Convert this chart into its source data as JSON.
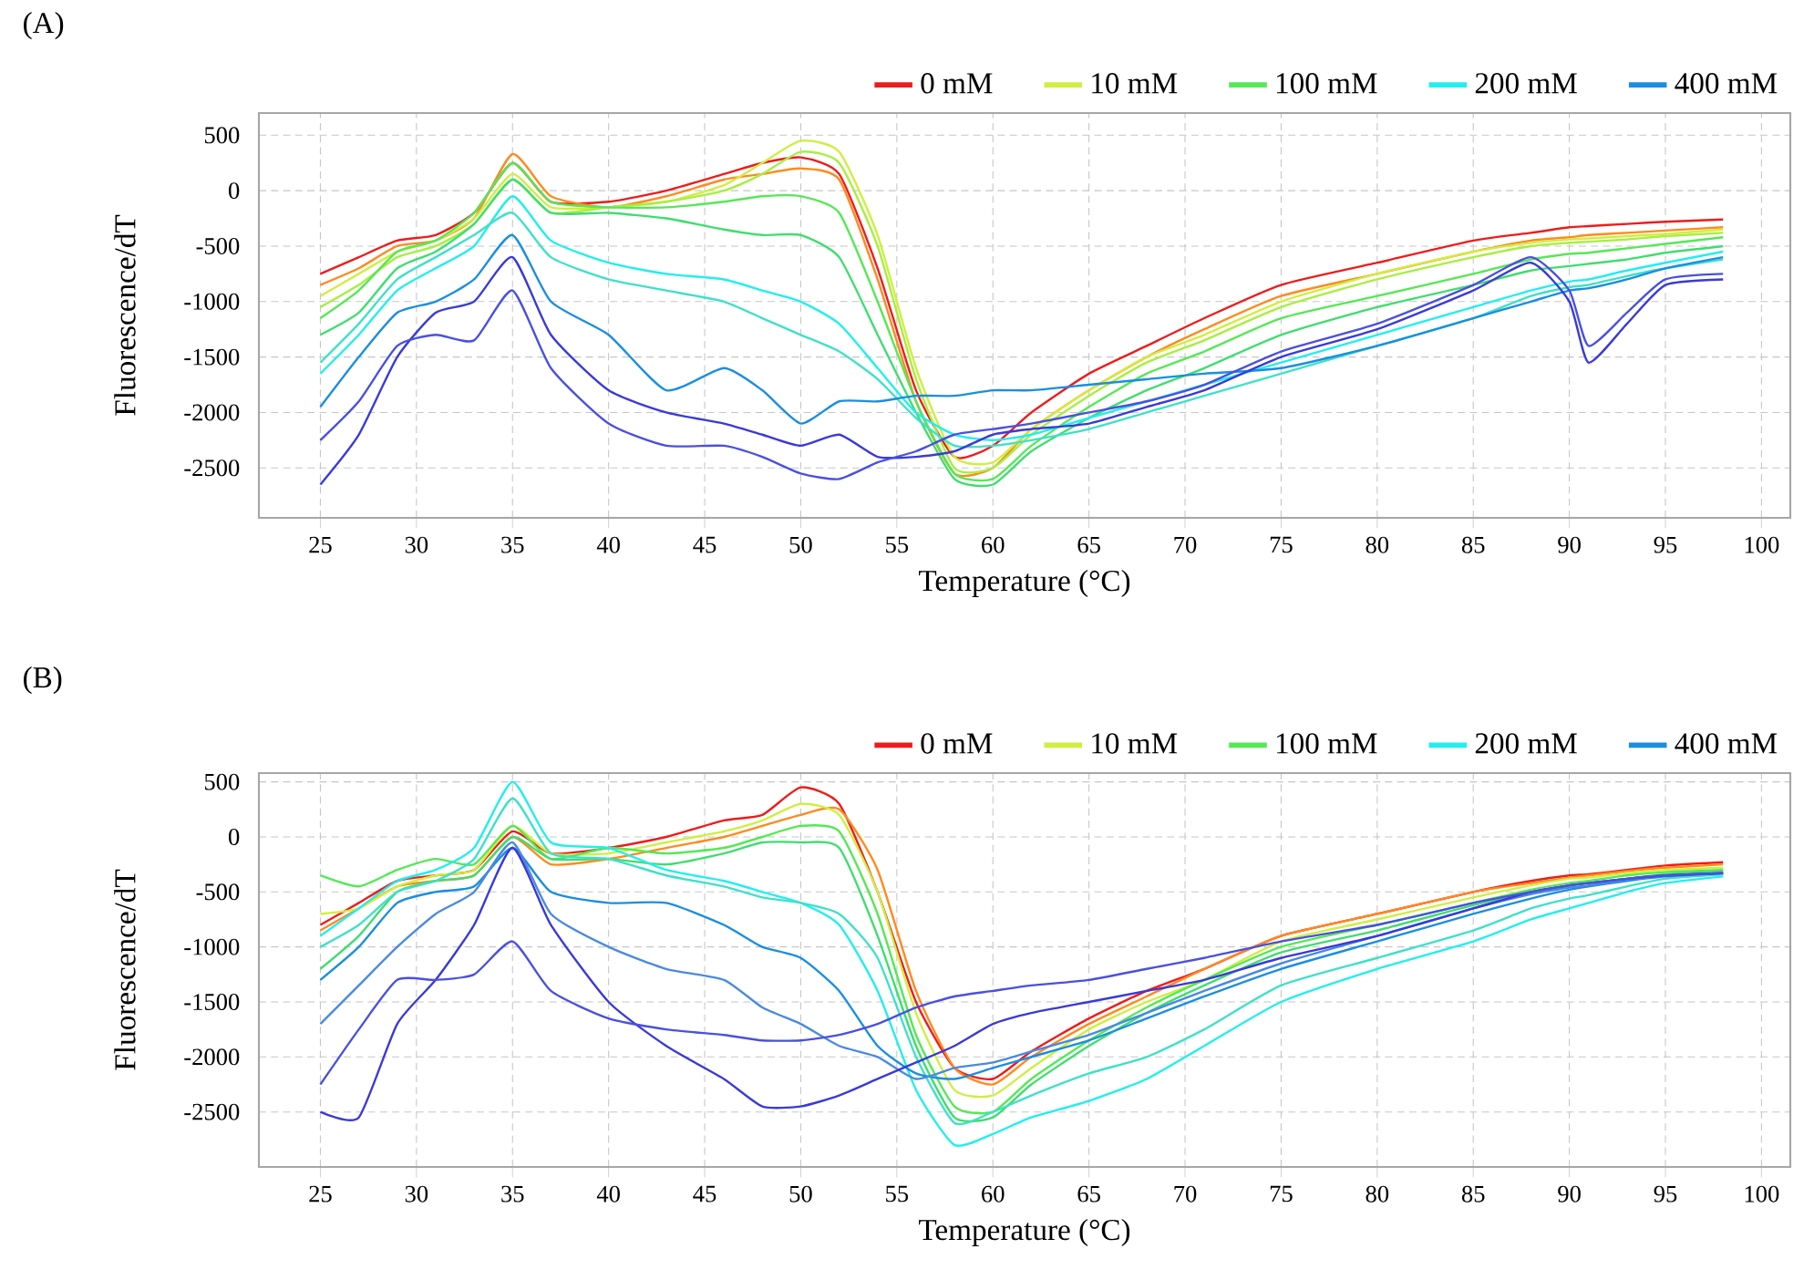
{
  "chart_data": [
    {
      "type": "line",
      "title": "(A)",
      "xlabel": "Temperature (°C)",
      "ylabel": "Fluorescence/dT",
      "x": [
        25,
        27,
        29,
        31,
        33,
        35,
        37,
        40,
        43,
        46,
        48,
        50,
        52,
        54,
        56,
        58,
        60,
        62,
        65,
        68,
        71,
        75,
        80,
        85,
        88,
        90,
        91,
        93,
        95,
        98
      ],
      "xlim": [
        21.8,
        101.5
      ],
      "ylim": [
        -2950,
        700
      ],
      "xticks": [
        25,
        30,
        35,
        40,
        45,
        50,
        55,
        60,
        65,
        70,
        75,
        80,
        85,
        90,
        95,
        100
      ],
      "yticks": [
        -2500,
        -2000,
        -1500,
        -1000,
        -500,
        0,
        500
      ],
      "grid": true,
      "legend": "top",
      "series": [
        {
          "name": "0 mM",
          "color": "#ee1c1c",
          "values": [
            -750,
            -600,
            -450,
            -400,
            -200,
            250,
            -100,
            -100,
            0,
            150,
            250,
            300,
            150,
            -700,
            -1800,
            -2400,
            -2300,
            -2000,
            -1650,
            -1400,
            -1150,
            -850,
            -650,
            -450,
            -380,
            -330,
            -320,
            -300,
            -280,
            -260
          ]
        },
        {
          "color": "#ff8a1e",
          "values": [
            -850,
            -700,
            -500,
            -450,
            -250,
            330,
            -50,
            -150,
            -50,
            100,
            150,
            200,
            100,
            -800,
            -1900,
            -2550,
            -2500,
            -2150,
            -1800,
            -1500,
            -1250,
            -950,
            -750,
            -550,
            -450,
            -420,
            -400,
            -380,
            -360,
            -330
          ]
        },
        {
          "name": "10 mM",
          "color": "#d0ee40",
          "values": [
            -950,
            -750,
            -550,
            -450,
            -250,
            150,
            -150,
            -150,
            -100,
            50,
            250,
            450,
            350,
            -400,
            -1600,
            -2400,
            -2450,
            -2150,
            -1800,
            -1500,
            -1300,
            -1000,
            -750,
            -550,
            -470,
            -440,
            -430,
            -410,
            -390,
            -350
          ]
        },
        {
          "color": "#a8ee40",
          "values": [
            -1050,
            -850,
            -600,
            -500,
            -300,
            100,
            -200,
            -150,
            -100,
            0,
            150,
            350,
            250,
            -500,
            -1700,
            -2500,
            -2500,
            -2200,
            -1850,
            -1550,
            -1350,
            -1050,
            -800,
            -600,
            -500,
            -470,
            -460,
            -440,
            -410,
            -380
          ]
        },
        {
          "name": "100 mM",
          "color": "#55e855",
          "values": [
            -1150,
            -900,
            -550,
            -450,
            -200,
            250,
            -100,
            -150,
            -150,
            -100,
            -50,
            -50,
            -200,
            -1000,
            -1900,
            -2550,
            -2600,
            -2300,
            -1950,
            -1650,
            -1450,
            -1150,
            -950,
            -750,
            -620,
            -570,
            -560,
            -520,
            -480,
            -420
          ]
        },
        {
          "color": "#40dd70",
          "values": [
            -1300,
            -1100,
            -700,
            -550,
            -300,
            100,
            -200,
            -200,
            -250,
            -350,
            -400,
            -400,
            -600,
            -1300,
            -2000,
            -2600,
            -2650,
            -2350,
            -2050,
            -1800,
            -1600,
            -1300,
            -1050,
            -850,
            -720,
            -680,
            -660,
            -620,
            -560,
            -500
          ]
        },
        {
          "name": "200 mM",
          "color": "#22eeee",
          "values": [
            -1650,
            -1300,
            -900,
            -700,
            -500,
            -50,
            -450,
            -650,
            -750,
            -800,
            -900,
            -1000,
            -1200,
            -1600,
            -2000,
            -2200,
            -2250,
            -2200,
            -2050,
            -1900,
            -1750,
            -1550,
            -1300,
            -1050,
            -900,
            -820,
            -800,
            -720,
            -650,
            -550
          ]
        },
        {
          "color": "#40e0c8",
          "values": [
            -1550,
            -1200,
            -800,
            -600,
            -400,
            -200,
            -600,
            -800,
            -900,
            -1000,
            -1150,
            -1300,
            -1450,
            -1700,
            -2050,
            -2300,
            -2300,
            -2250,
            -2150,
            -2000,
            -1850,
            -1650,
            -1400,
            -1150,
            -950,
            -870,
            -850,
            -770,
            -700,
            -620
          ]
        },
        {
          "name": "400 mM",
          "color": "#1a8ee0",
          "values": [
            -1950,
            -1500,
            -1100,
            -1000,
            -800,
            -400,
            -1000,
            -1300,
            -1800,
            -1600,
            -1800,
            -2100,
            -1900,
            -1900,
            -1850,
            -1850,
            -1800,
            -1800,
            -1750,
            -1700,
            -1650,
            -1600,
            -1400,
            -1150,
            -1000,
            -900,
            -880,
            -800,
            -700,
            -600
          ]
        },
        {
          "color": "#3a3ad8",
          "values": [
            -2650,
            -2200,
            -1500,
            -1100,
            -1000,
            -600,
            -1300,
            -1800,
            -2000,
            -2100,
            -2200,
            -2300,
            -2200,
            -2400,
            -2400,
            -2350,
            -2200,
            -2150,
            -2100,
            -1950,
            -1800,
            -1500,
            -1250,
            -900,
            -650,
            -1000,
            -1550,
            -1200,
            -850,
            -800
          ]
        },
        {
          "color": "#4a50e0",
          "values": [
            -2250,
            -1900,
            -1400,
            -1300,
            -1350,
            -900,
            -1600,
            -2100,
            -2300,
            -2300,
            -2400,
            -2550,
            -2600,
            -2450,
            -2350,
            -2200,
            -2150,
            -2100,
            -2000,
            -1900,
            -1750,
            -1450,
            -1200,
            -850,
            -600,
            -900,
            -1400,
            -1100,
            -800,
            -750
          ]
        }
      ]
    },
    {
      "type": "line",
      "title": "(B)",
      "xlabel": "Temperature (°C)",
      "ylabel": "Fluorescence/dT",
      "x": [
        25,
        27,
        29,
        31,
        33,
        35,
        37,
        40,
        43,
        46,
        48,
        50,
        52,
        54,
        56,
        58,
        60,
        62,
        65,
        68,
        71,
        75,
        80,
        85,
        88,
        90,
        91,
        93,
        95,
        98
      ],
      "xlim": [
        21.8,
        101.5
      ],
      "ylim": [
        -3000,
        580
      ],
      "xticks": [
        25,
        30,
        35,
        40,
        45,
        50,
        55,
        60,
        65,
        70,
        75,
        80,
        85,
        90,
        95,
        100
      ],
      "yticks": [
        -2500,
        -2000,
        -1500,
        -1000,
        -500,
        0,
        500
      ],
      "grid": true,
      "legend": "top",
      "series": [
        {
          "name": "0 mM",
          "color": "#ee1c1c",
          "values": [
            -800,
            -600,
            -400,
            -350,
            -300,
            50,
            -150,
            -100,
            0,
            150,
            200,
            450,
            300,
            -500,
            -1500,
            -2100,
            -2200,
            -1950,
            -1650,
            -1400,
            -1200,
            -900,
            -700,
            -500,
            -400,
            -350,
            -340,
            -300,
            -260,
            -230
          ]
        },
        {
          "color": "#ff8a1e",
          "values": [
            -850,
            -650,
            -450,
            -400,
            -350,
            0,
            -250,
            -200,
            -100,
            0,
            100,
            200,
            250,
            -300,
            -1400,
            -2100,
            -2250,
            -2000,
            -1700,
            -1450,
            -1200,
            -900,
            -700,
            -500,
            -420,
            -370,
            -350,
            -310,
            -280,
            -250
          ]
        },
        {
          "name": "10 mM",
          "color": "#d0ee40",
          "values": [
            -700,
            -650,
            -450,
            -350,
            -300,
            100,
            -150,
            -150,
            -50,
            50,
            150,
            300,
            200,
            -500,
            -1600,
            -2300,
            -2350,
            -2100,
            -1750,
            -1500,
            -1300,
            -950,
            -750,
            -550,
            -440,
            -380,
            -370,
            -330,
            -300,
            -280
          ]
        },
        {
          "name": "100 mM",
          "color": "#55e855",
          "values": [
            -350,
            -450,
            -300,
            -200,
            -250,
            100,
            -200,
            -100,
            -150,
            -100,
            0,
            100,
            50,
            -700,
            -1800,
            -2450,
            -2500,
            -2200,
            -1850,
            -1550,
            -1300,
            -1000,
            -800,
            -600,
            -480,
            -420,
            -400,
            -350,
            -320,
            -300
          ]
        },
        {
          "color": "#40dd70",
          "values": [
            -1200,
            -900,
            -500,
            -400,
            -350,
            0,
            -200,
            -200,
            -250,
            -150,
            -50,
            -50,
            -100,
            -900,
            -1900,
            -2550,
            -2550,
            -2250,
            -1900,
            -1600,
            -1350,
            -1050,
            -850,
            -620,
            -500,
            -440,
            -420,
            -380,
            -340,
            -310
          ]
        },
        {
          "name": "200 mM",
          "color": "#22eeee",
          "values": [
            -900,
            -650,
            -400,
            -300,
            -100,
            500,
            -50,
            -100,
            -300,
            -400,
            -500,
            -600,
            -800,
            -1400,
            -2300,
            -2800,
            -2700,
            -2550,
            -2400,
            -2200,
            -1900,
            -1500,
            -1200,
            -950,
            -750,
            -650,
            -600,
            -500,
            -420,
            -360
          ]
        },
        {
          "color": "#40e0c8",
          "values": [
            -1000,
            -800,
            -500,
            -400,
            -200,
            350,
            -150,
            -200,
            -350,
            -450,
            -550,
            -600,
            -700,
            -1100,
            -2000,
            -2600,
            -2500,
            -2350,
            -2150,
            -2000,
            -1750,
            -1350,
            -1100,
            -850,
            -650,
            -560,
            -530,
            -450,
            -380,
            -340
          ]
        },
        {
          "name": "400 mM",
          "color": "#1a8ee0",
          "values": [
            -1300,
            -1000,
            -600,
            -500,
            -450,
            -100,
            -500,
            -600,
            -600,
            -800,
            -1000,
            -1100,
            -1400,
            -1900,
            -2150,
            -2200,
            -2100,
            -2000,
            -1850,
            -1650,
            -1450,
            -1200,
            -950,
            -700,
            -560,
            -480,
            -450,
            -400,
            -360,
            -330
          ]
        },
        {
          "color": "#4a8ae0",
          "values": [
            -1700,
            -1350,
            -1000,
            -700,
            -500,
            -50,
            -700,
            -1000,
            -1200,
            -1300,
            -1550,
            -1700,
            -1900,
            -2000,
            -2200,
            -2100,
            -2050,
            -1950,
            -1800,
            -1600,
            -1400,
            -1150,
            -900,
            -650,
            -520,
            -460,
            -440,
            -390,
            -350,
            -330
          ]
        },
        {
          "color": "#3a3ad8",
          "values": [
            -2500,
            -2550,
            -1700,
            -1300,
            -800,
            -100,
            -800,
            -1500,
            -1900,
            -2200,
            -2450,
            -2450,
            -2350,
            -2200,
            -2050,
            -1900,
            -1700,
            -1600,
            -1500,
            -1400,
            -1300,
            -1100,
            -900,
            -650,
            -500,
            -440,
            -420,
            -380,
            -350,
            -330
          ]
        },
        {
          "color": "#4a50e0",
          "values": [
            -2250,
            -1750,
            -1300,
            -1300,
            -1250,
            -950,
            -1400,
            -1650,
            -1750,
            -1800,
            -1850,
            -1850,
            -1800,
            -1700,
            -1550,
            -1450,
            -1400,
            -1350,
            -1300,
            -1200,
            -1100,
            -950,
            -800,
            -600,
            -500,
            -440,
            -420,
            -380,
            -350,
            -330
          ]
        }
      ]
    }
  ]
}
